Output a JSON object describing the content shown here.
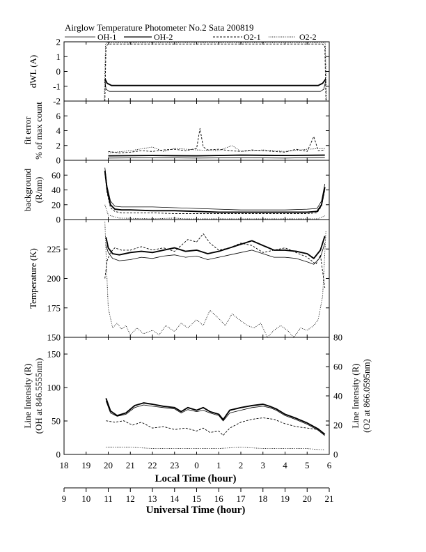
{
  "chart_data": {
    "type": "line",
    "title": "Airglow Temperature Photometer No.2  Sata        200819",
    "legend": [
      "OH-1",
      "OH-2",
      "O2-1",
      "O2-2"
    ],
    "x_local": {
      "label": "Local Time (hour)",
      "ticks": [
        "18",
        "19",
        "20",
        "21",
        "22",
        "23",
        "0",
        "1",
        "2",
        "3",
        "4",
        "5",
        "6"
      ],
      "range": [
        18,
        30
      ]
    },
    "x_universal": {
      "label": "Universal Time (hour)",
      "ticks": [
        "9",
        "10",
        "11",
        "12",
        "13",
        "14",
        "15",
        "16",
        "17",
        "18",
        "19",
        "20",
        "21"
      ],
      "range": [
        9,
        21
      ]
    },
    "panels": [
      {
        "ylabel": [
          "dWL (A)"
        ],
        "ylim": [
          -2,
          2
        ],
        "yticks": [
          "-2",
          "-1",
          "0",
          "1",
          "2"
        ],
        "series": [
          {
            "name": "OH-1",
            "style": "thin",
            "x": [
              19.85,
              19.9,
              20.05,
              29.6,
              29.75,
              29.85
            ],
            "y": [
              -0.6,
              -1.2,
              -1.35,
              -1.35,
              -1.2,
              -0.6
            ]
          },
          {
            "name": "OH-2",
            "style": "thick",
            "x": [
              19.85,
              19.95,
              20.15,
              29.5,
              29.7,
              29.85
            ],
            "y": [
              -0.5,
              -0.8,
              -0.95,
              -0.95,
              -0.8,
              -0.5
            ]
          },
          {
            "name": "O2-1",
            "style": "dashed",
            "x": [
              19.85,
              19.9,
              20.0,
              29.7,
              29.8,
              29.85
            ],
            "y": [
              -2,
              1.7,
              1.85,
              1.85,
              1.7,
              -2
            ]
          },
          {
            "name": "O2-2",
            "style": "dotted",
            "x": [
              19.82,
              19.88,
              20.0,
              29.7,
              29.82,
              29.88
            ],
            "y": [
              -2,
              1.9,
              1.95,
              1.95,
              1.9,
              -2
            ]
          }
        ]
      },
      {
        "ylabel": [
          "fit error",
          "% of max count"
        ],
        "ylim": [
          0,
          8
        ],
        "yticks": [
          "0",
          "2",
          "4",
          "6"
        ],
        "series": [
          {
            "name": "OH-1",
            "style": "thin",
            "x": [
              20,
              22,
              24,
              26,
              28,
              29.8
            ],
            "y": [
              0.3,
              0.35,
              0.3,
              0.35,
              0.3,
              0.4
            ]
          },
          {
            "name": "OH-2",
            "style": "thick",
            "x": [
              20,
              22,
              24,
              26,
              28,
              29.8
            ],
            "y": [
              0.6,
              0.65,
              0.6,
              0.7,
              0.65,
              0.7
            ]
          },
          {
            "name": "O2-1",
            "style": "dashed",
            "x": [
              20,
              20.5,
              21,
              21.5,
              22,
              22.5,
              23,
              23.5,
              24,
              24.15,
              24.3,
              24.5,
              25,
              25.5,
              26,
              26.5,
              27,
              27.5,
              28,
              28.5,
              29,
              29.3,
              29.5,
              29.8
            ],
            "y": [
              1.2,
              1.0,
              1.1,
              1.3,
              1.2,
              1.4,
              1.5,
              1.3,
              1.6,
              4.3,
              1.8,
              1.4,
              1.5,
              1.3,
              1.2,
              1.4,
              1.3,
              1.2,
              1.1,
              1.5,
              1.2,
              3.2,
              1.3,
              1.4
            ]
          },
          {
            "name": "O2-2",
            "style": "dotted",
            "x": [
              20,
              21,
              22,
              22.5,
              23,
              24,
              25,
              25.6,
              26,
              27,
              28,
              29,
              29.8
            ],
            "y": [
              1.0,
              1.3,
              1.8,
              1.2,
              1.6,
              1.4,
              1.3,
              2.0,
              1.2,
              1.4,
              1.2,
              1.5,
              1.6
            ]
          }
        ]
      },
      {
        "ylabel": [
          "background",
          "(R/nm)"
        ],
        "ylim": [
          0,
          80
        ],
        "yticks": [
          "0",
          "20",
          "40",
          "60"
        ],
        "series": [
          {
            "name": "OH-1",
            "style": "thin",
            "x": [
              19.85,
              19.95,
              20.1,
              20.3,
              20.6,
              21,
              22,
              23,
              24,
              25,
              26,
              27,
              28,
              29,
              29.45,
              29.65,
              29.8
            ],
            "y": [
              70,
              45,
              25,
              18,
              17,
              17,
              17,
              16,
              15,
              14,
              13,
              13,
              13,
              14,
              15,
              25,
              48
            ]
          },
          {
            "name": "OH-2",
            "style": "thick",
            "x": [
              19.85,
              19.95,
              20.1,
              20.3,
              20.6,
              21,
              22,
              23,
              24,
              25,
              26,
              27,
              28,
              29,
              29.45,
              29.65,
              29.8
            ],
            "y": [
              66,
              40,
              20,
              14,
              13,
              13,
              12,
              12,
              11,
              10,
              10,
              10,
              10,
              10,
              11,
              20,
              44
            ]
          },
          {
            "name": "O2-1",
            "style": "dashed",
            "x": [
              19.85,
              19.95,
              20.1,
              20.3,
              20.6,
              21,
              22,
              23,
              24,
              25,
              26,
              27,
              28,
              29,
              29.45,
              29.65,
              29.8
            ],
            "y": [
              62,
              36,
              16,
              11,
              9,
              9,
              9,
              8,
              8,
              8,
              8,
              8,
              8,
              8,
              9,
              18,
              40
            ]
          },
          {
            "name": "O2-2",
            "style": "dotted",
            "x": [
              19.85,
              20.0,
              20.5,
              22,
              23,
              23.5,
              24,
              26,
              28,
              29.5,
              29.8
            ],
            "y": [
              20,
              6,
              2,
              1,
              2,
              1,
              1,
              1,
              1,
              1,
              5
            ]
          }
        ]
      },
      {
        "ylabel": [
          "Temperature (K)"
        ],
        "ylim": [
          150,
          250
        ],
        "yticks": [
          "150",
          "175",
          "200",
          "225"
        ],
        "series": [
          {
            "name": "OH-1",
            "style": "thin",
            "x": [
              19.9,
              20.0,
              20.2,
              20.5,
              21,
              21.5,
              22,
              22.5,
              23,
              23.5,
              24,
              24.5,
              25,
              25.5,
              26,
              26.5,
              27,
              27.5,
              28,
              28.5,
              29,
              29.3,
              29.6,
              29.8
            ],
            "y": [
              228,
              222,
              217,
              215,
              216,
              218,
              217,
              219,
              220,
              218,
              219,
              216,
              218,
              220,
              222,
              224,
              221,
              218,
              218,
              217,
              214,
              212,
              218,
              230
            ]
          },
          {
            "name": "OH-2",
            "style": "thick",
            "x": [
              19.9,
              20.0,
              20.2,
              20.5,
              21,
              21.5,
              22,
              22.5,
              23,
              23.5,
              24,
              24.5,
              25,
              25.5,
              26,
              26.5,
              27,
              27.5,
              28,
              28.5,
              29,
              29.3,
              29.6,
              29.8
            ],
            "y": [
              235,
              226,
              221,
              220,
              222,
              223,
              222,
              224,
              226,
              223,
              224,
              221,
              223,
              226,
              229,
              232,
              228,
              224,
              224,
              223,
              221,
              217,
              224,
              236
            ]
          },
          {
            "name": "O2-1",
            "style": "dashed",
            "x": [
              19.85,
              19.95,
              20.1,
              20.3,
              20.6,
              21,
              21.5,
              22,
              22.5,
              23,
              23.3,
              23.6,
              24,
              24.3,
              24.6,
              25,
              25.5,
              26,
              26.5,
              27,
              27.5,
              28,
              28.5,
              29,
              29.4,
              29.6,
              29.8
            ],
            "y": [
              200,
              215,
              222,
              226,
              224,
              224,
              227,
              224,
              226,
              223,
              228,
              233,
              231,
              238,
              230,
              224,
              226,
              230,
              228,
              222,
              224,
              226,
              222,
              218,
              212,
              220,
              192
            ]
          },
          {
            "name": "O2-2",
            "style": "dotted",
            "x": [
              19.85,
              19.92,
              20.0,
              20.2,
              20.4,
              20.6,
              20.8,
              21,
              21.3,
              21.6,
              22,
              22.3,
              22.6,
              23,
              23.3,
              23.6,
              24,
              24.3,
              24.6,
              25,
              25.3,
              25.6,
              26,
              26.3,
              26.6,
              26.9,
              27.2,
              27.5,
              27.8,
              28.1,
              28.4,
              28.7,
              29,
              29.3,
              29.5,
              29.7,
              29.85
            ],
            "y": [
              248,
              210,
              175,
              158,
              162,
              157,
              160,
              152,
              158,
              153,
              156,
              152,
              160,
              155,
              162,
              158,
              165,
              160,
              173,
              166,
              160,
              170,
              164,
              160,
              158,
              162,
              150,
              156,
              160,
              156,
              150,
              158,
              156,
              160,
              165,
              185,
              240
            ]
          }
        ]
      },
      {
        "ylabel": [
          "Line Intensity (R)",
          "(OH at 846.5555nm)"
        ],
        "ylim": [
          0,
          175
        ],
        "yticks": [
          "0",
          "50",
          "100",
          "150"
        ],
        "y2label": [
          "Line Intensity (R)",
          "(O2 at 866.0595nm)"
        ],
        "y2lim": [
          0,
          80
        ],
        "y2ticks": [
          "0",
          "20",
          "40",
          "60",
          "80"
        ],
        "series": [
          {
            "name": "OH-1",
            "style": "thin",
            "axis": "left",
            "x": [
              19.9,
              20.1,
              20.4,
              20.8,
              21.2,
              21.6,
              22,
              22.5,
              23,
              23.3,
              23.6,
              24,
              24.3,
              24.6,
              25,
              25.2,
              25.5,
              26,
              26.5,
              27,
              27.3,
              27.6,
              28,
              28.5,
              29,
              29.5,
              29.8
            ],
            "y": [
              80,
              62,
              57,
              60,
              70,
              74,
              72,
              70,
              68,
              62,
              67,
              64,
              66,
              62,
              58,
              50,
              62,
              66,
              70,
              72,
              70,
              66,
              58,
              52,
              45,
              36,
              28
            ]
          },
          {
            "name": "OH-2",
            "style": "thick",
            "axis": "left",
            "x": [
              19.9,
              20.1,
              20.4,
              20.8,
              21.2,
              21.6,
              22,
              22.5,
              23,
              23.3,
              23.6,
              24,
              24.3,
              24.6,
              25,
              25.2,
              25.5,
              26,
              26.5,
              27,
              27.3,
              27.6,
              28,
              28.5,
              29,
              29.5,
              29.8
            ],
            "y": [
              84,
              65,
              58,
              62,
              73,
              77,
              75,
              72,
              70,
              64,
              70,
              66,
              70,
              64,
              60,
              52,
              66,
              70,
              73,
              75,
              72,
              68,
              60,
              54,
              47,
              38,
              30
            ]
          },
          {
            "name": "O2-1",
            "style": "dashed",
            "axis": "right",
            "x": [
              19.9,
              20.3,
              20.7,
              21.1,
              21.5,
              22,
              22.5,
              23,
              23.5,
              24,
              24.3,
              24.6,
              25,
              25.2,
              25.5,
              26,
              26.5,
              27,
              27.5,
              28,
              28.5,
              29,
              29.5,
              29.8
            ],
            "y": [
              23,
              22,
              23,
              20,
              22,
              18,
              19,
              17,
              18,
              16,
              18,
              15,
              16,
              13,
              18,
              22,
              24,
              25,
              24,
              21,
              19,
              18,
              17,
              14
            ]
          },
          {
            "name": "O2-2",
            "style": "dotted",
            "axis": "right",
            "x": [
              19.9,
              20.5,
              21,
              22,
              23,
              24,
              25,
              26,
              27,
              28,
              29,
              29.8
            ],
            "y": [
              5,
              5,
              5,
              4,
              4,
              4,
              4,
              5,
              4,
              4,
              4,
              3
            ]
          }
        ]
      }
    ]
  }
}
